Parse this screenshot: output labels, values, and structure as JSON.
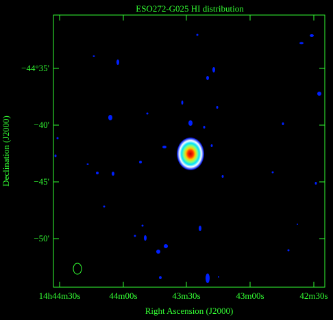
{
  "header": {
    "title": "ESO272-G025  HI distribution"
  },
  "axes": {
    "x_label": "Right Ascension (J2000)",
    "y_label": "Declination (J2000)",
    "x_tick_labels": [
      "14h44m30s",
      "44m00s",
      "43m30s",
      "43m00s",
      "42m30s"
    ],
    "y_tick_labels": [
      "−44°35'",
      "−40'",
      "−45'",
      "−50'"
    ]
  }
}
